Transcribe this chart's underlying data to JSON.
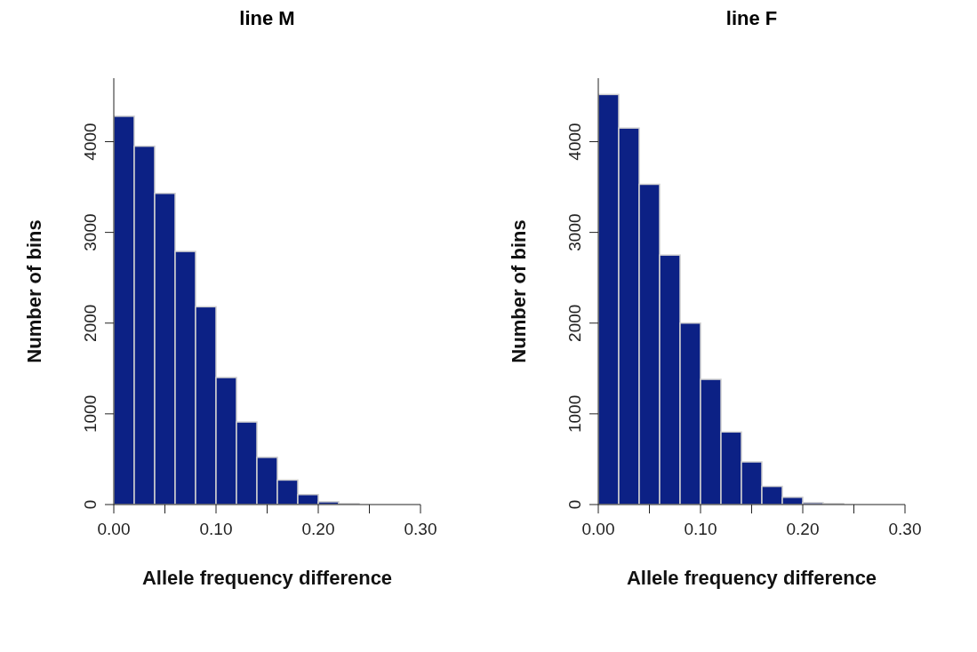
{
  "chart_data": [
    {
      "type": "histogram",
      "title": "line M",
      "xlabel": "Allele frequency difference",
      "ylabel": "Number of bins",
      "color": "#0c2185",
      "bins": [
        0,
        0.02,
        0.04,
        0.06,
        0.08,
        0.1,
        0.12,
        0.14,
        0.16,
        0.18,
        0.2,
        0.22,
        0.24,
        0.26
      ],
      "values": [
        4280,
        3950,
        3430,
        2790,
        2180,
        1400,
        910,
        520,
        270,
        110,
        30,
        10,
        0
      ],
      "xlim": [
        0,
        0.3
      ],
      "xticks": [
        {
          "value": 0,
          "label": "0.00"
        },
        {
          "value": 0.05,
          "label": null
        },
        {
          "value": 0.1,
          "label": "0.10"
        },
        {
          "value": 0.15,
          "label": null
        },
        {
          "value": 0.2,
          "label": "0.20"
        },
        {
          "value": 0.25,
          "label": null
        },
        {
          "value": 0.3,
          "label": "0.30"
        }
      ],
      "ylim": [
        0,
        4700
      ],
      "yticks": [
        0,
        1000,
        2000,
        3000,
        4000
      ],
      "grid": false,
      "legend": false
    },
    {
      "type": "histogram",
      "title": "line F",
      "xlabel": "Allele frequency difference",
      "ylabel": "Number of bins",
      "color": "#0c2185",
      "bins": [
        0,
        0.02,
        0.04,
        0.06,
        0.08,
        0.1,
        0.12,
        0.14,
        0.16,
        0.18,
        0.2,
        0.22,
        0.24,
        0.26
      ],
      "values": [
        4520,
        4150,
        3530,
        2750,
        2000,
        1380,
        800,
        470,
        200,
        80,
        20,
        10,
        0
      ],
      "xlim": [
        0,
        0.3
      ],
      "xticks": [
        {
          "value": 0,
          "label": "0.00"
        },
        {
          "value": 0.05,
          "label": null
        },
        {
          "value": 0.1,
          "label": "0.10"
        },
        {
          "value": 0.15,
          "label": null
        },
        {
          "value": 0.2,
          "label": "0.20"
        },
        {
          "value": 0.25,
          "label": null
        },
        {
          "value": 0.3,
          "label": "0.30"
        }
      ],
      "ylim": [
        0,
        4700
      ],
      "yticks": [
        0,
        1000,
        2000,
        3000,
        4000
      ],
      "grid": false,
      "legend": false
    }
  ]
}
